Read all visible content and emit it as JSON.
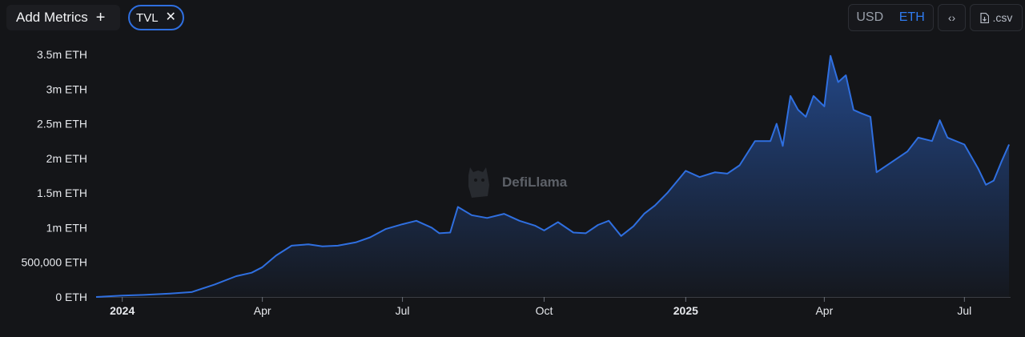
{
  "toolbar": {
    "add_metrics_label": "Add Metrics",
    "add_icon": "plus-icon",
    "metric_chip_label": "TVL",
    "metric_chip_remove_icon": "close-icon",
    "unit_options": [
      "USD",
      "ETH"
    ],
    "unit_selected": "ETH",
    "embed_icon": "code-icon",
    "csv_label": ".csv",
    "csv_icon": "file-download-icon"
  },
  "watermark": {
    "text": "DefiLlama",
    "icon": "llama-logo-icon"
  },
  "colors": {
    "accent": "#2f7bf0",
    "line": "#2f6fe0",
    "background": "#141518",
    "grid": "#24262b"
  },
  "chart_data": {
    "type": "area",
    "series": [
      {
        "name": "TVL",
        "points": [
          [
            "2023-12-15",
            0
          ],
          [
            "2024-01-01",
            20000
          ],
          [
            "2024-01-15",
            30000
          ],
          [
            "2024-02-01",
            50000
          ],
          [
            "2024-02-15",
            70000
          ],
          [
            "2024-03-01",
            180000
          ],
          [
            "2024-03-15",
            300000
          ],
          [
            "2024-03-25",
            350000
          ],
          [
            "2024-04-01",
            430000
          ],
          [
            "2024-04-10",
            600000
          ],
          [
            "2024-04-20",
            740000
          ],
          [
            "2024-05-01",
            760000
          ],
          [
            "2024-05-10",
            730000
          ],
          [
            "2024-05-20",
            740000
          ],
          [
            "2024-06-01",
            790000
          ],
          [
            "2024-06-10",
            860000
          ],
          [
            "2024-06-20",
            980000
          ],
          [
            "2024-07-01",
            1050000
          ],
          [
            "2024-07-10",
            1100000
          ],
          [
            "2024-07-20",
            1000000
          ],
          [
            "2024-07-25",
            920000
          ],
          [
            "2024-08-01",
            930000
          ],
          [
            "2024-08-06",
            1300000
          ],
          [
            "2024-08-15",
            1180000
          ],
          [
            "2024-08-25",
            1140000
          ],
          [
            "2024-09-05",
            1200000
          ],
          [
            "2024-09-15",
            1100000
          ],
          [
            "2024-09-25",
            1030000
          ],
          [
            "2024-10-01",
            960000
          ],
          [
            "2024-10-10",
            1080000
          ],
          [
            "2024-10-20",
            930000
          ],
          [
            "2024-10-28",
            920000
          ],
          [
            "2024-11-05",
            1040000
          ],
          [
            "2024-11-12",
            1100000
          ],
          [
            "2024-11-20",
            880000
          ],
          [
            "2024-11-28",
            1020000
          ],
          [
            "2024-12-05",
            1200000
          ],
          [
            "2024-12-12",
            1320000
          ],
          [
            "2024-12-20",
            1500000
          ],
          [
            "2025-01-01",
            1820000
          ],
          [
            "2025-01-10",
            1730000
          ],
          [
            "2025-01-20",
            1800000
          ],
          [
            "2025-01-28",
            1780000
          ],
          [
            "2025-02-05",
            1900000
          ],
          [
            "2025-02-15",
            2250000
          ],
          [
            "2025-02-25",
            2250000
          ],
          [
            "2025-03-01",
            2500000
          ],
          [
            "2025-03-05",
            2180000
          ],
          [
            "2025-03-10",
            2900000
          ],
          [
            "2025-03-15",
            2700000
          ],
          [
            "2025-03-20",
            2600000
          ],
          [
            "2025-03-25",
            2900000
          ],
          [
            "2025-04-01",
            2750000
          ],
          [
            "2025-04-05",
            3480000
          ],
          [
            "2025-04-10",
            3100000
          ],
          [
            "2025-04-15",
            3200000
          ],
          [
            "2025-04-20",
            2700000
          ],
          [
            "2025-04-25",
            2650000
          ],
          [
            "2025-05-01",
            2600000
          ],
          [
            "2025-05-05",
            1800000
          ],
          [
            "2025-05-15",
            1950000
          ],
          [
            "2025-05-25",
            2100000
          ],
          [
            "2025-06-01",
            2300000
          ],
          [
            "2025-06-10",
            2250000
          ],
          [
            "2025-06-15",
            2550000
          ],
          [
            "2025-06-20",
            2300000
          ],
          [
            "2025-07-01",
            2200000
          ],
          [
            "2025-07-10",
            1850000
          ],
          [
            "2025-07-15",
            1620000
          ],
          [
            "2025-07-20",
            1680000
          ],
          [
            "2025-07-25",
            1950000
          ],
          [
            "2025-07-30",
            2200000
          ]
        ]
      }
    ],
    "x_range": [
      "2023-12-15",
      "2025-07-31"
    ],
    "x_ticks": [
      {
        "date": "2024-01-01",
        "label": "2024",
        "bold": true
      },
      {
        "date": "2024-04-01",
        "label": "Apr"
      },
      {
        "date": "2024-07-01",
        "label": "Jul"
      },
      {
        "date": "2024-10-01",
        "label": "Oct"
      },
      {
        "date": "2025-01-01",
        "label": "2025",
        "bold": true
      },
      {
        "date": "2025-04-01",
        "label": "Apr"
      },
      {
        "date": "2025-07-01",
        "label": "Jul"
      }
    ],
    "y_ticks": [
      {
        "value": 0,
        "label": "0 ETH"
      },
      {
        "value": 500000,
        "label": "500,000 ETH"
      },
      {
        "value": 1000000,
        "label": "1m ETH"
      },
      {
        "value": 1500000,
        "label": "1.5m ETH"
      },
      {
        "value": 2000000,
        "label": "2m ETH"
      },
      {
        "value": 2500000,
        "label": "2.5m ETH"
      },
      {
        "value": 3000000,
        "label": "3m ETH"
      },
      {
        "value": 3500000,
        "label": "3.5m ETH"
      }
    ],
    "ylim": [
      0,
      3500000
    ],
    "grid": false
  }
}
